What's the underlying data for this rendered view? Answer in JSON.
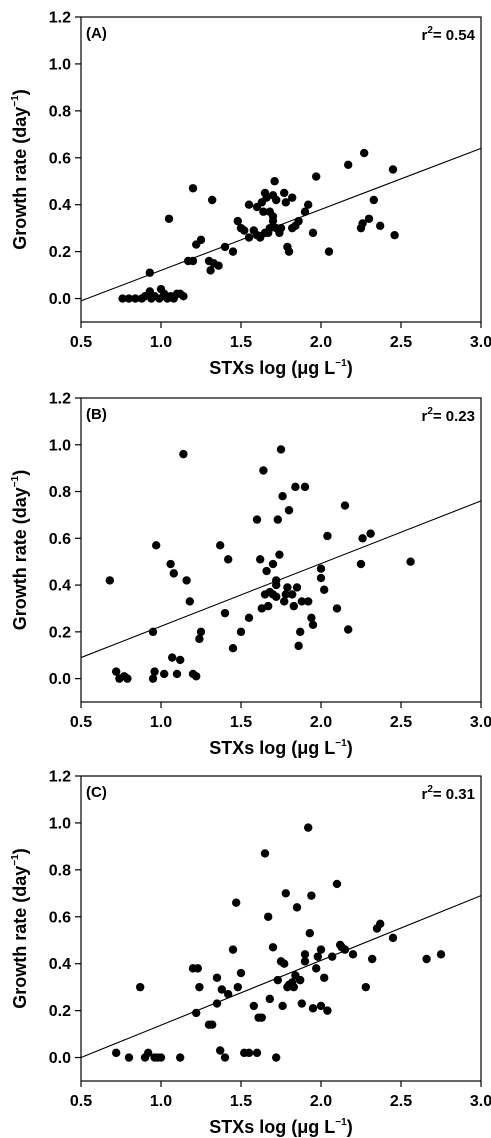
{
  "chart_data": [
    {
      "type": "scatter",
      "panel": "(A)",
      "annotation": {
        "prefix": "r",
        "sup": "2",
        "suffix": "= 0.54"
      },
      "xlabel": {
        "text": "STXs log (μg L",
        "sup": "−1",
        "close": ")"
      },
      "ylabel": {
        "text": "Growth rate (day",
        "sup": "−1",
        "close": ")"
      },
      "xlim": [
        0.5,
        3.0
      ],
      "ylim": [
        -0.1,
        1.2
      ],
      "xticks": [
        "0.5",
        "1.0",
        "1.5",
        "2.0",
        "2.5",
        "3.0"
      ],
      "yticks": [
        "0.0",
        "0.2",
        "0.4",
        "0.6",
        "0.8",
        "1.0",
        "1.2"
      ],
      "fit_line": {
        "x": [
          0.5,
          3.0
        ],
        "y": [
          -0.01,
          0.64
        ]
      },
      "x": [
        0.76,
        0.8,
        0.84,
        0.88,
        0.9,
        0.93,
        0.94,
        0.96,
        0.99,
        1.0,
        1.02,
        1.04,
        1.06,
        1.08,
        1.1,
        1.12,
        1.14,
        1.17,
        1.05,
        1.2,
        1.25,
        1.3,
        1.32,
        1.36,
        1.4,
        1.45,
        1.48,
        1.5,
        1.52,
        1.55,
        1.58,
        1.6,
        1.62,
        1.64,
        1.65,
        1.67,
        1.68,
        1.7,
        1.71,
        1.72,
        1.74,
        1.75,
        1.78,
        1.8,
        1.82,
        1.86,
        1.9,
        1.92,
        1.95,
        1.97,
        2.05,
        2.17,
        2.25,
        2.27,
        2.3,
        2.33,
        2.37,
        2.45,
        2.46,
        1.6,
        1.63,
        1.66,
        1.68,
        1.7,
        1.72,
        1.77,
        1.79,
        1.82,
        1.55,
        1.65,
        1.7,
        1.2,
        1.22,
        1.31,
        1.33,
        0.93,
        2.26,
        1.84
      ],
      "y": [
        0.0,
        0.0,
        0.0,
        0.0,
        0.01,
        0.03,
        0.0,
        0.01,
        0.0,
        0.04,
        0.02,
        0.0,
        0.01,
        0.0,
        0.02,
        0.02,
        0.01,
        0.16,
        0.34,
        0.16,
        0.25,
        0.16,
        0.42,
        0.14,
        0.22,
        0.2,
        0.33,
        0.3,
        0.29,
        0.26,
        0.29,
        0.39,
        0.26,
        0.37,
        0.45,
        0.28,
        0.3,
        0.44,
        0.5,
        0.42,
        0.28,
        0.3,
        0.41,
        0.2,
        0.43,
        0.33,
        0.37,
        0.4,
        0.28,
        0.52,
        0.2,
        0.57,
        0.3,
        0.62,
        0.34,
        0.42,
        0.31,
        0.55,
        0.27,
        0.27,
        0.41,
        0.43,
        0.37,
        0.35,
        0.3,
        0.45,
        0.22,
        0.3,
        0.4,
        0.28,
        0.33,
        0.47,
        0.23,
        0.12,
        0.15,
        0.11,
        0.32,
        0.31
      ]
    },
    {
      "type": "scatter",
      "panel": "(B)",
      "annotation": {
        "prefix": "r",
        "sup": "2",
        "suffix": "= 0.23"
      },
      "xlabel": {
        "text": "STXs log (μg L",
        "sup": "−1",
        "close": ")"
      },
      "ylabel": {
        "text": "Growth rate (day",
        "sup": "−1",
        "close": ")"
      },
      "xlim": [
        0.5,
        3.0
      ],
      "ylim": [
        -0.1,
        1.2
      ],
      "xticks": [
        "0.5",
        "1.0",
        "1.5",
        "2.0",
        "2.5",
        "3.0"
      ],
      "yticks": [
        "0.0",
        "0.2",
        "0.4",
        "0.6",
        "0.8",
        "1.0",
        "1.2"
      ],
      "fit_line": {
        "x": [
          0.5,
          3.0
        ],
        "y": [
          0.09,
          0.76
        ]
      },
      "x": [
        0.68,
        0.72,
        0.74,
        0.77,
        0.79,
        0.95,
        0.96,
        0.97,
        0.95,
        1.02,
        1.06,
        1.07,
        1.08,
        1.1,
        1.12,
        1.14,
        1.16,
        1.18,
        1.2,
        1.22,
        1.24,
        1.25,
        1.37,
        1.4,
        1.42,
        1.45,
        1.5,
        1.55,
        1.6,
        1.62,
        1.64,
        1.65,
        1.67,
        1.68,
        1.7,
        1.72,
        1.73,
        1.74,
        1.75,
        1.77,
        1.78,
        1.8,
        1.82,
        1.84,
        1.86,
        1.88,
        1.9,
        1.92,
        1.94,
        1.95,
        2.0,
        2.02,
        2.04,
        2.1,
        2.15,
        2.17,
        2.25,
        2.26,
        2.31,
        2.56,
        1.63,
        1.66,
        1.7,
        1.72,
        1.76,
        1.85,
        1.87,
        2.0,
        1.72,
        1.79,
        1.83
      ],
      "y": [
        0.42,
        0.03,
        0.0,
        0.01,
        0.0,
        0.2,
        0.03,
        0.57,
        0.0,
        0.02,
        0.49,
        0.09,
        0.45,
        0.02,
        0.08,
        0.96,
        0.42,
        0.33,
        0.02,
        0.01,
        0.17,
        0.2,
        0.57,
        0.28,
        0.51,
        0.13,
        0.2,
        0.26,
        0.68,
        0.51,
        0.89,
        0.36,
        0.31,
        0.37,
        0.36,
        0.42,
        0.68,
        0.53,
        0.98,
        0.33,
        0.36,
        0.72,
        0.36,
        0.82,
        0.14,
        0.33,
        0.82,
        0.33,
        0.26,
        0.23,
        0.43,
        0.38,
        0.61,
        0.3,
        0.74,
        0.21,
        0.49,
        0.6,
        0.62,
        0.5,
        0.3,
        0.46,
        0.49,
        0.35,
        0.78,
        0.39,
        0.2,
        0.47,
        0.4,
        0.39,
        0.31
      ]
    },
    {
      "type": "scatter",
      "panel": "(C)",
      "annotation": {
        "prefix": "r",
        "sup": "2",
        "suffix": "= 0.31"
      },
      "xlabel": {
        "text": "STXs log (μg L",
        "sup": "−1",
        "close": ")"
      },
      "ylabel": {
        "text": "Growth rate (day",
        "sup": "−1",
        "close": ")"
      },
      "xlim": [
        0.5,
        3.0
      ],
      "ylim": [
        -0.1,
        1.2
      ],
      "xticks": [
        "0.5",
        "1.0",
        "1.5",
        "2.0",
        "2.5",
        "3.0"
      ],
      "yticks": [
        "0.0",
        "0.2",
        "0.4",
        "0.6",
        "0.8",
        "1.0",
        "1.2"
      ],
      "fit_line": {
        "x": [
          0.5,
          3.0
        ],
        "y": [
          0.0,
          0.69
        ]
      },
      "x": [
        0.72,
        0.8,
        0.87,
        0.9,
        0.92,
        0.96,
        0.98,
        1.0,
        1.12,
        1.2,
        1.22,
        1.23,
        1.24,
        1.3,
        1.32,
        1.35,
        1.37,
        1.4,
        1.42,
        1.45,
        1.47,
        1.48,
        1.5,
        1.52,
        1.55,
        1.58,
        1.6,
        1.63,
        1.65,
        1.67,
        1.68,
        1.7,
        1.72,
        1.73,
        1.75,
        1.77,
        1.78,
        1.8,
        1.82,
        1.83,
        1.85,
        1.87,
        1.88,
        1.9,
        1.92,
        1.93,
        1.95,
        1.97,
        1.98,
        2.0,
        2.02,
        2.04,
        2.07,
        2.1,
        2.13,
        2.15,
        2.2,
        2.28,
        2.32,
        2.35,
        2.37,
        2.45,
        2.66,
        2.75,
        1.76,
        1.79,
        1.84,
        1.9,
        1.94,
        2.0,
        2.12,
        1.38,
        1.35,
        1.61
      ],
      "y": [
        0.02,
        0.0,
        0.3,
        0.0,
        0.02,
        0.0,
        0.0,
        0.0,
        0.0,
        0.38,
        0.19,
        0.38,
        0.3,
        0.14,
        0.14,
        0.34,
        0.03,
        0.0,
        0.27,
        0.46,
        0.66,
        0.3,
        0.36,
        0.02,
        0.02,
        0.22,
        0.02,
        0.17,
        0.87,
        0.6,
        0.25,
        0.47,
        0.0,
        0.33,
        0.41,
        0.4,
        0.7,
        0.31,
        0.32,
        0.3,
        0.64,
        0.33,
        0.23,
        0.44,
        0.98,
        0.53,
        0.21,
        0.38,
        0.43,
        0.46,
        0.34,
        0.2,
        0.43,
        0.74,
        0.47,
        0.46,
        0.44,
        0.3,
        0.42,
        0.55,
        0.57,
        0.51,
        0.42,
        0.44,
        0.22,
        0.3,
        0.35,
        0.41,
        0.69,
        0.22,
        0.48,
        0.29,
        0.23,
        0.17
      ]
    }
  ]
}
